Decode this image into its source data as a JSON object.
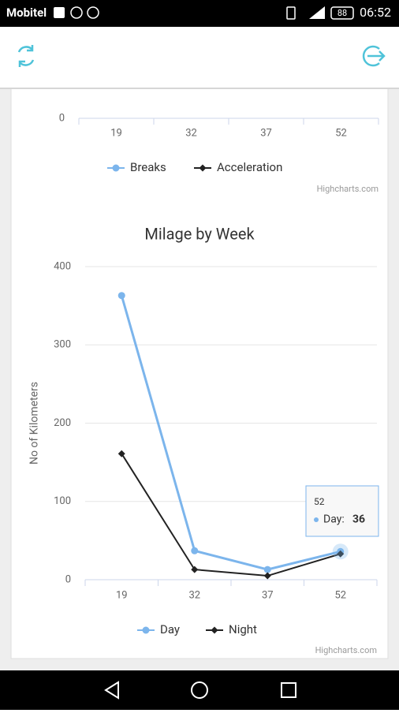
{
  "status_bar": {
    "carrier": "Mobitel",
    "battery": "88",
    "time": "06:52"
  },
  "chart_data": [
    {
      "type": "line",
      "categories": [
        "19",
        "32",
        "37",
        "52"
      ],
      "yticks": [
        0
      ],
      "series": [
        {
          "name": "Breaks",
          "color": "#7cb5ec",
          "symbol": "circle"
        },
        {
          "name": "Acceleration",
          "color": "#222222",
          "symbol": "diamond"
        }
      ],
      "credit": "Highcharts.com"
    },
    {
      "type": "line",
      "title": "Milage by Week",
      "y_label": "No of Kilometers",
      "categories": [
        "19",
        "32",
        "37",
        "52"
      ],
      "ylim": [
        0,
        400
      ],
      "yticks": [
        0,
        100,
        200,
        300,
        400
      ],
      "grid": true,
      "series": [
        {
          "name": "Day",
          "color": "#7cb5ec",
          "symbol": "circle",
          "values": [
            363,
            37,
            13,
            36
          ]
        },
        {
          "name": "Night",
          "color": "#222222",
          "symbol": "diamond",
          "values": [
            161,
            13,
            5,
            33
          ]
        }
      ],
      "tooltip": {
        "label": "Day:"
      },
      "credit": "Highcharts.com"
    }
  ]
}
